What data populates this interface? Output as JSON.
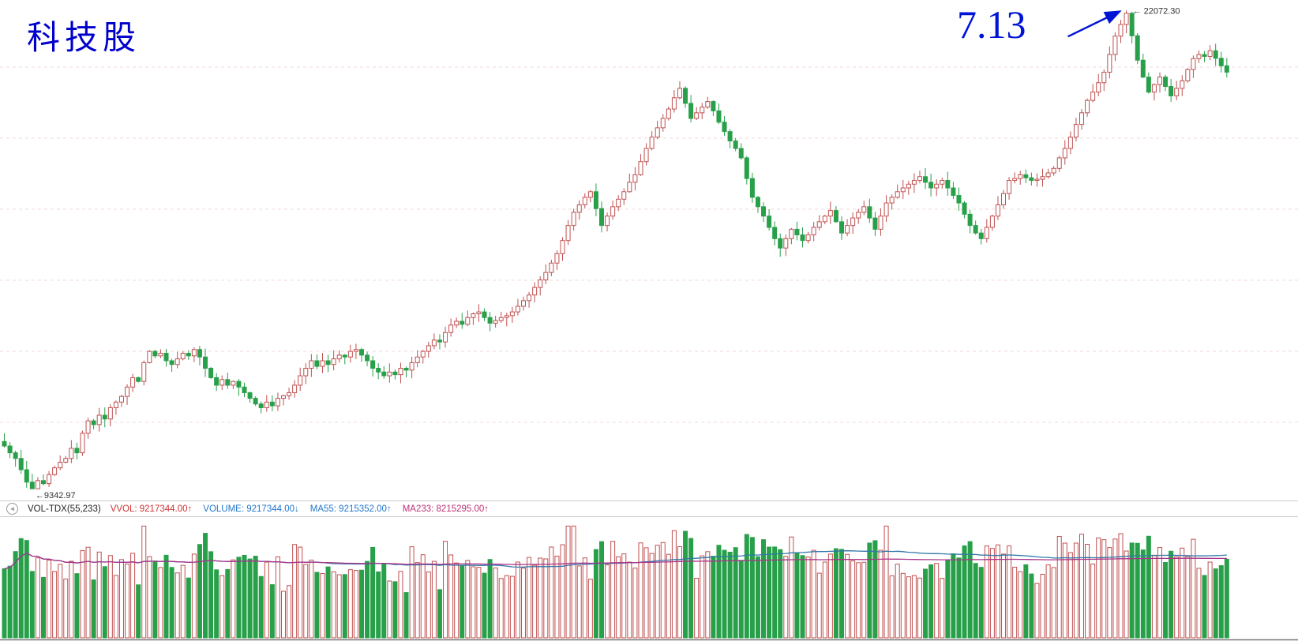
{
  "title": "科技股",
  "callout": {
    "text": "7.13"
  },
  "annotations": {
    "high_label": "← 22072.30",
    "low_label": "←9342.97",
    "high_value": 22072.3,
    "low_value": 9342.97
  },
  "indicator_bar": {
    "icon": "collapse-circle",
    "name": "VOL-TDX(55,233)",
    "items": [
      {
        "label": "VVOL:",
        "value": "9217344.00",
        "arrow": "↑",
        "color": "#cc3333"
      },
      {
        "label": "VOLUME:",
        "value": "9217344.00",
        "arrow": "↓",
        "color": "#2277cc"
      },
      {
        "label": "MA55:",
        "value": "9215352.00",
        "arrow": "↑",
        "color": "#2277cc"
      },
      {
        "label": "MA233:",
        "value": "8215295.00",
        "arrow": "↑",
        "color": "#bb3377"
      }
    ]
  },
  "colors": {
    "up": "#c05050",
    "down": "#28a04a",
    "grid": "#f2dada",
    "ma55": "#3377aa",
    "ma233": "#aa3388",
    "axis": "#777777",
    "annotation_text": "#333333",
    "callout_blue": "#0014d6",
    "title_blue": "#0000cc"
  },
  "chart_data": {
    "type": "candlestick",
    "title": "科技股",
    "xlabel": "",
    "ylabel": "",
    "grid": true,
    "annotated_high": 22072.3,
    "annotated_low": 9342.97,
    "high_index": 201,
    "low_index": 5,
    "volume_ma_windows": [
      55,
      233
    ],
    "closes": [
      10480,
      10300,
      10150,
      9850,
      9520,
      9343,
      9560,
      9480,
      9720,
      9900,
      10050,
      10150,
      10420,
      10300,
      10820,
      11150,
      11050,
      11300,
      11200,
      11500,
      11650,
      11800,
      12050,
      12300,
      12200,
      12700,
      13000,
      12880,
      12950,
      12750,
      12650,
      12800,
      12950,
      12880,
      13050,
      12850,
      12550,
      12300,
      12100,
      12250,
      12100,
      12200,
      12050,
      11900,
      11750,
      11600,
      11500,
      11650,
      11550,
      11750,
      11820,
      11900,
      12100,
      12350,
      12550,
      12750,
      12600,
      12750,
      12650,
      12800,
      12900,
      12850,
      13000,
      13050,
      12900,
      12750,
      12550,
      12450,
      12350,
      12450,
      12380,
      12550,
      12500,
      12700,
      12850,
      13000,
      13150,
      13300,
      13250,
      13500,
      13700,
      13800,
      13720,
      13900,
      14000,
      14050,
      13900,
      13750,
      13820,
      13900,
      13950,
      14050,
      14200,
      14350,
      14500,
      14700,
      14900,
      15100,
      15350,
      15600,
      15950,
      16350,
      16700,
      16900,
      17100,
      17250,
      16800,
      16350,
      16600,
      16850,
      17050,
      17250,
      17500,
      17700,
      18050,
      18400,
      18700,
      18950,
      19200,
      19450,
      19750,
      20000,
      19600,
      19200,
      19350,
      19500,
      19650,
      19400,
      19100,
      18850,
      18600,
      18400,
      18150,
      17600,
      17100,
      16850,
      16600,
      16300,
      16000,
      15750,
      16000,
      16250,
      16100,
      15950,
      16100,
      16300,
      16450,
      16600,
      16750,
      16450,
      16150,
      16350,
      16550,
      16700,
      16850,
      16550,
      16250,
      16600,
      16950,
      17100,
      17250,
      17350,
      17450,
      17550,
      17650,
      17500,
      17350,
      17450,
      17550,
      17350,
      17150,
      16950,
      16650,
      16350,
      16150,
      16000,
      16300,
      16600,
      16900,
      17200,
      17550,
      17600,
      17700,
      17620,
      17550,
      17580,
      17650,
      17750,
      17870,
      18150,
      18400,
      18700,
      19040,
      19350,
      19680,
      19900,
      20150,
      20430,
      20900,
      21390,
      21700,
      22000,
      21400,
      20750,
      20300,
      19900,
      20100,
      20300,
      20050,
      19800,
      20000,
      20200,
      20500,
      20790,
      20900,
      20850,
      21000,
      20800,
      20600,
      20430
    ]
  }
}
